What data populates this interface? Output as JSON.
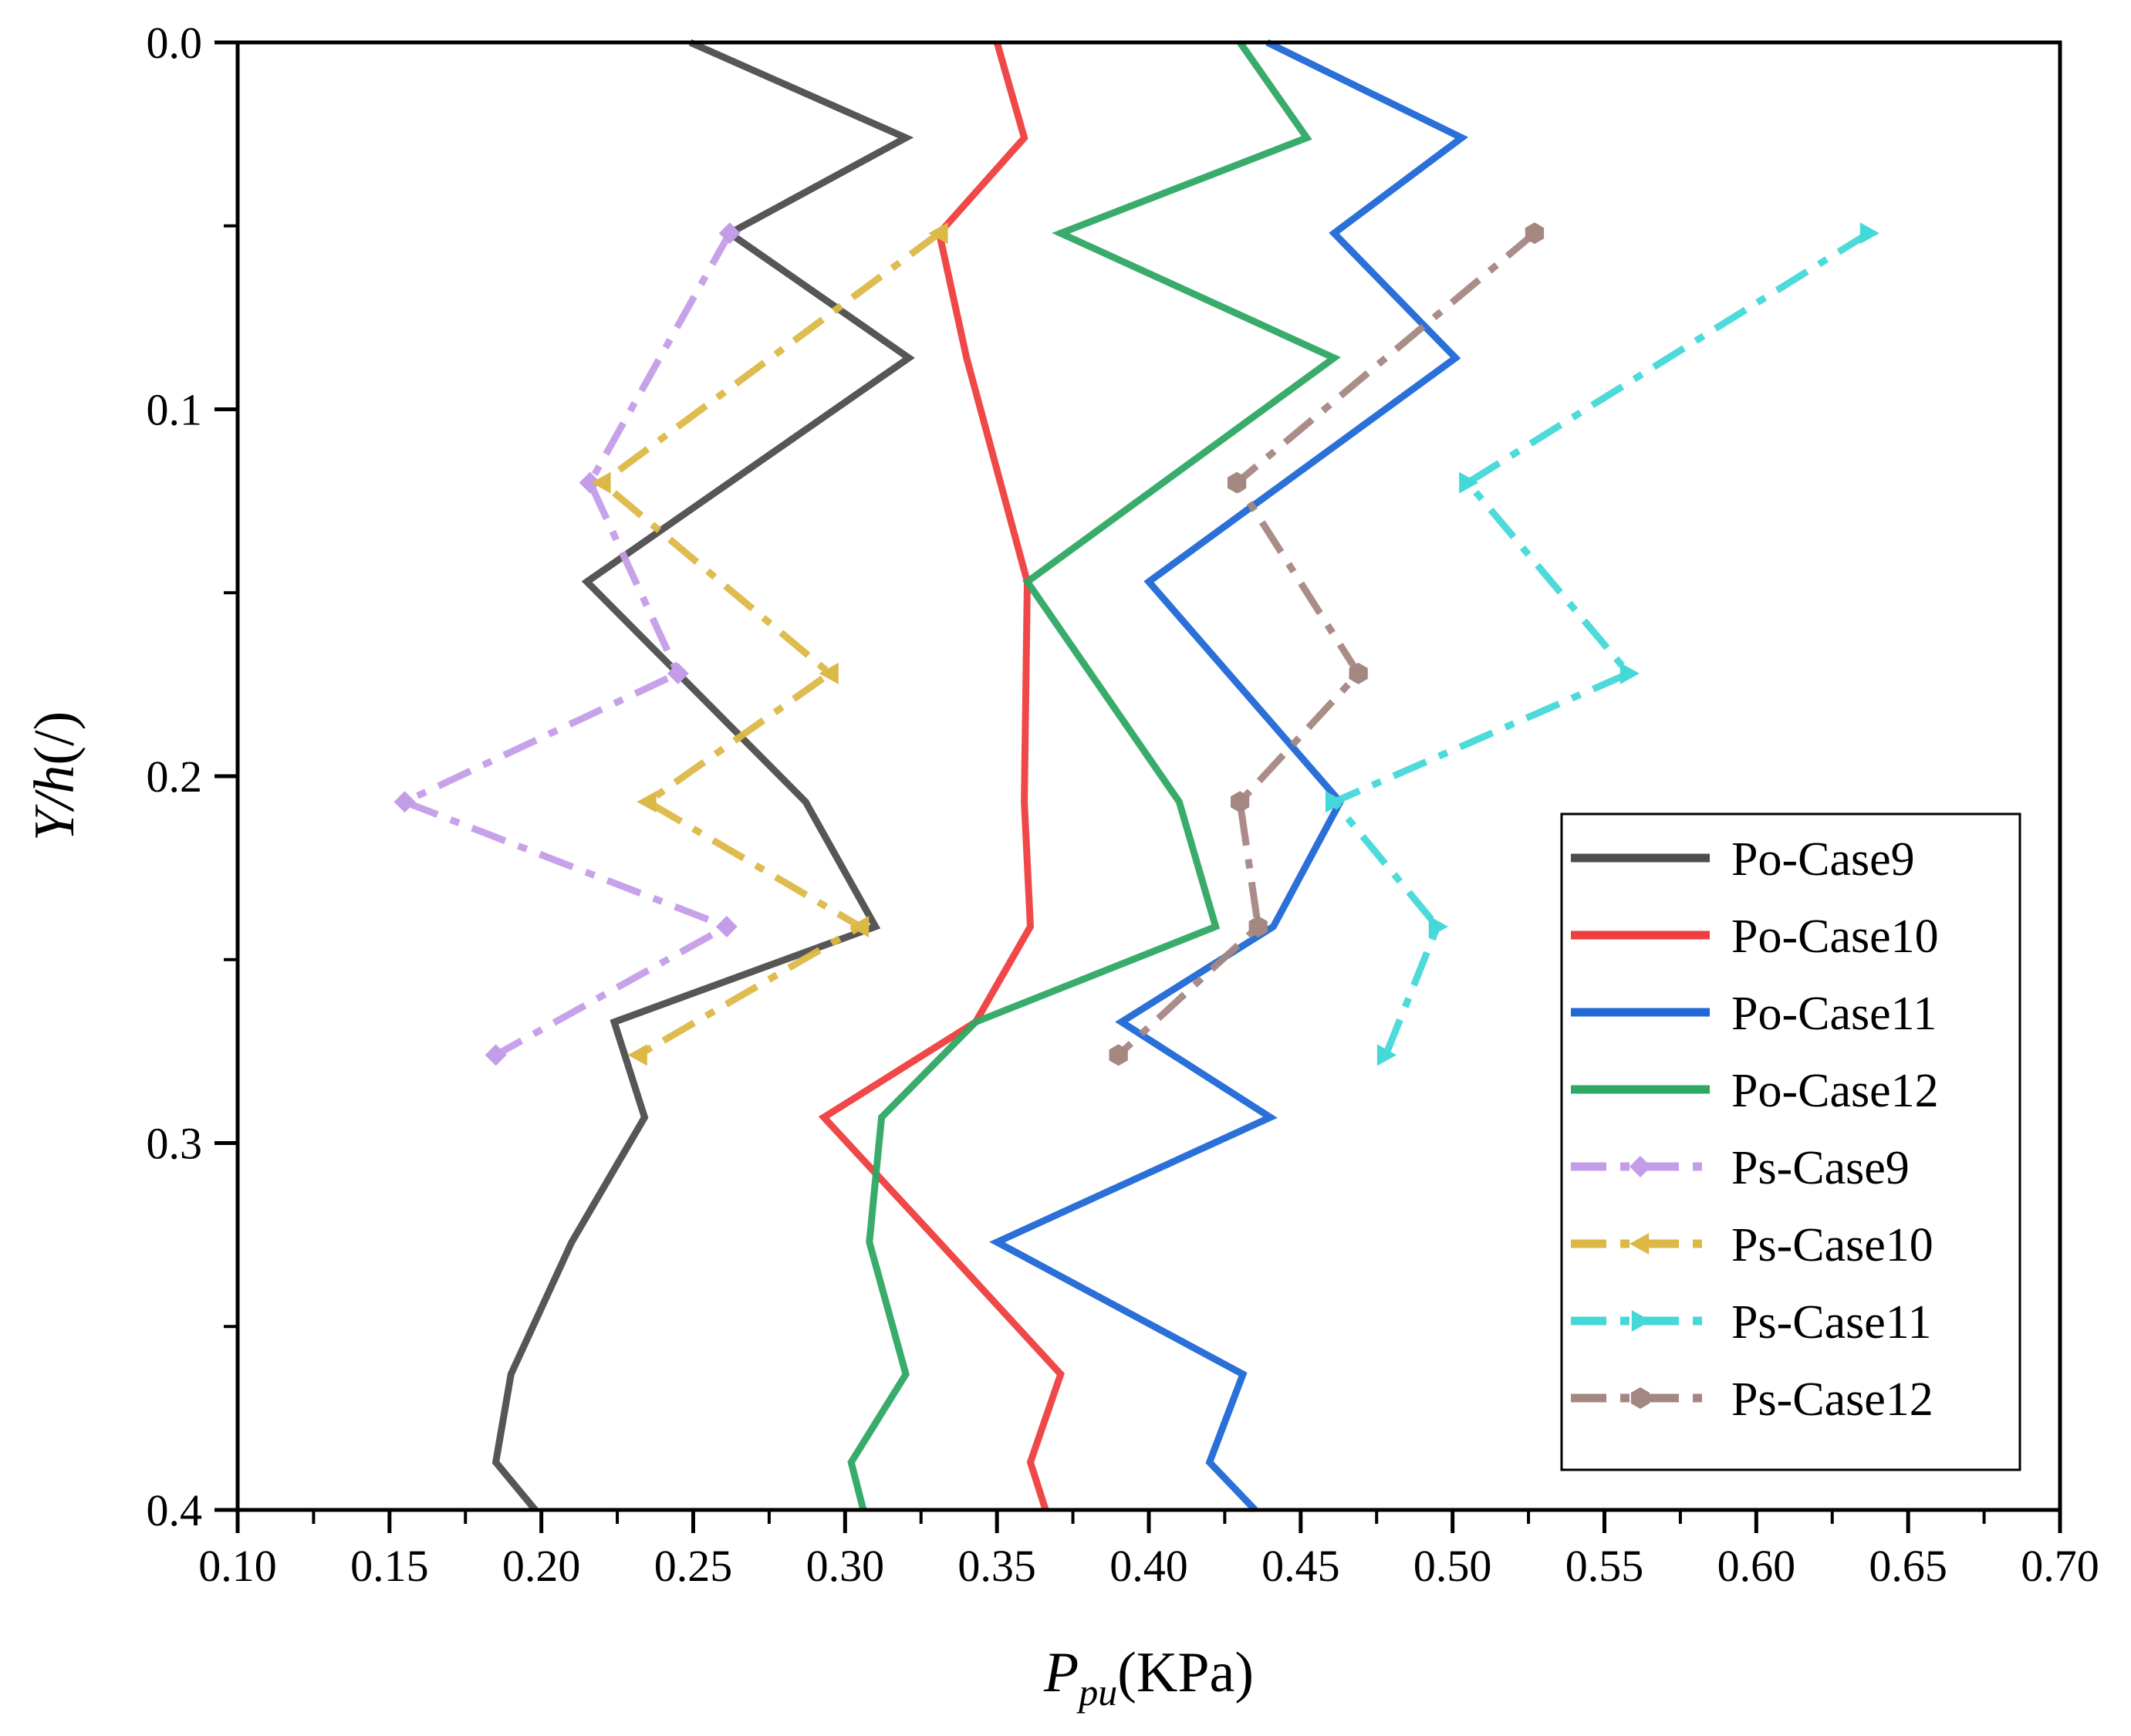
{
  "chart_data": {
    "type": "line",
    "title": "",
    "xlabel": {
      "main": "P",
      "sub": "pu",
      "unit": "(KPa)"
    },
    "ylabel": {
      "main": "Y/",
      "italic": "h",
      "unit": "(/)"
    },
    "xlim": [
      0.1,
      0.7
    ],
    "ylim": [
      0.0,
      0.4
    ],
    "y_inverted": true,
    "x_ticks": [
      "0.10",
      "0.15",
      "0.20",
      "0.25",
      "0.30",
      "0.35",
      "0.40",
      "0.45",
      "0.50",
      "0.55",
      "0.60",
      "0.65",
      "0.70"
    ],
    "y_ticks": [
      "0.0",
      "0.1",
      "0.2",
      "0.3",
      "0.4"
    ],
    "grid": false,
    "legend_position": "lower-right",
    "series": [
      {
        "name": "Po-Case9",
        "color": "#4d4d4d",
        "style": "solid",
        "marker": "none",
        "points": [
          [
            0.249,
            0.0
          ],
          [
            0.32,
            0.026
          ],
          [
            0.262,
            0.052
          ],
          [
            0.321,
            0.086
          ],
          [
            0.215,
            0.147
          ],
          [
            0.287,
            0.207
          ],
          [
            0.31,
            0.241
          ],
          [
            0.224,
            0.267
          ],
          [
            0.234,
            0.293
          ],
          [
            0.21,
            0.327
          ],
          [
            0.19,
            0.363
          ],
          [
            0.185,
            0.387
          ],
          [
            0.198,
            0.4
          ]
        ]
      },
      {
        "name": "Po-Case10",
        "color": "#ef3e3e",
        "style": "solid",
        "marker": "none",
        "points": [
          [
            0.35,
            0.0
          ],
          [
            0.359,
            0.026
          ],
          [
            0.331,
            0.052
          ],
          [
            0.34,
            0.086
          ],
          [
            0.36,
            0.147
          ],
          [
            0.359,
            0.207
          ],
          [
            0.361,
            0.241
          ],
          [
            0.343,
            0.267
          ],
          [
            0.293,
            0.293
          ],
          [
            0.331,
            0.327
          ],
          [
            0.371,
            0.363
          ],
          [
            0.361,
            0.387
          ],
          [
            0.366,
            0.4
          ]
        ]
      },
      {
        "name": "Po-Case11",
        "color": "#1f68d6",
        "style": "solid",
        "marker": "none",
        "points": [
          [
            0.439,
            0.0
          ],
          [
            0.503,
            0.026
          ],
          [
            0.461,
            0.052
          ],
          [
            0.501,
            0.086
          ],
          [
            0.4,
            0.147
          ],
          [
            0.463,
            0.207
          ],
          [
            0.441,
            0.241
          ],
          [
            0.391,
            0.267
          ],
          [
            0.44,
            0.293
          ],
          [
            0.35,
            0.327
          ],
          [
            0.431,
            0.363
          ],
          [
            0.42,
            0.387
          ],
          [
            0.435,
            0.4
          ]
        ]
      },
      {
        "name": "Po-Case12",
        "color": "#2ea863",
        "style": "solid",
        "marker": "none",
        "points": [
          [
            0.43,
            0.0
          ],
          [
            0.452,
            0.026
          ],
          [
            0.371,
            0.052
          ],
          [
            0.461,
            0.086
          ],
          [
            0.36,
            0.147
          ],
          [
            0.41,
            0.207
          ],
          [
            0.422,
            0.241
          ],
          [
            0.343,
            0.267
          ],
          [
            0.312,
            0.293
          ],
          [
            0.308,
            0.327
          ],
          [
            0.32,
            0.363
          ],
          [
            0.302,
            0.387
          ],
          [
            0.306,
            0.4
          ]
        ]
      },
      {
        "name": "Ps-Case9",
        "color": "#c49de9",
        "style": "dashdot",
        "marker": "diamond",
        "points": [
          [
            0.262,
            0.052
          ],
          [
            0.216,
            0.12
          ],
          [
            0.245,
            0.172
          ],
          [
            0.155,
            0.207
          ],
          [
            0.261,
            0.241
          ],
          [
            0.185,
            0.276
          ]
        ]
      },
      {
        "name": "Ps-Case10",
        "color": "#dcb847",
        "style": "dashdot",
        "marker": "triangle-left",
        "points": [
          [
            0.331,
            0.052
          ],
          [
            0.22,
            0.12
          ],
          [
            0.295,
            0.172
          ],
          [
            0.235,
            0.207
          ],
          [
            0.305,
            0.241
          ],
          [
            0.232,
            0.276
          ]
        ]
      },
      {
        "name": "Ps-Case11",
        "color": "#45d8d8",
        "style": "dashdot",
        "marker": "triangle-right",
        "points": [
          [
            0.637,
            0.052
          ],
          [
            0.505,
            0.12
          ],
          [
            0.558,
            0.172
          ],
          [
            0.461,
            0.207
          ],
          [
            0.495,
            0.241
          ],
          [
            0.478,
            0.276
          ]
        ]
      },
      {
        "name": "Ps-Case12",
        "color": "#a58782",
        "style": "dashdot",
        "marker": "hexagon",
        "points": [
          [
            0.527,
            0.052
          ],
          [
            0.429,
            0.12
          ],
          [
            0.469,
            0.172
          ],
          [
            0.43,
            0.207
          ],
          [
            0.436,
            0.241
          ],
          [
            0.39,
            0.276
          ]
        ]
      }
    ]
  }
}
